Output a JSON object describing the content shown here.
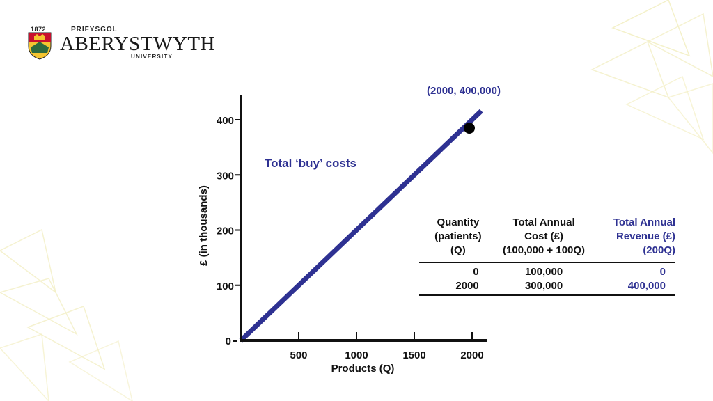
{
  "logo": {
    "year": "1872",
    "prifysgol": "PRIFYSGOL",
    "aberystwyth": "ABERYSTWYTH",
    "university": "UNIVERSITY"
  },
  "colors": {
    "series": "#2e3192",
    "axis": "#111111",
    "decoration": "#f3efc4"
  },
  "chart_data": {
    "type": "line",
    "xlabel": "Products (Q)",
    "ylabel": "£ (in thousands)",
    "xlim": [
      0,
      2000
    ],
    "ylim": [
      0,
      400
    ],
    "x_ticks": [
      500,
      1000,
      1500,
      2000
    ],
    "y_ticks": [
      0,
      100,
      200,
      300,
      400
    ],
    "series": [
      {
        "name": "Total ‘buy’ costs",
        "x": [
          0,
          2000
        ],
        "y": [
          0,
          400
        ]
      }
    ],
    "highlight_point": {
      "x": 2000,
      "y": 400,
      "label": "(2000, 400,000)"
    }
  },
  "table": {
    "headers": {
      "quantity": [
        "Quantity",
        "(patients)",
        "(Q)"
      ],
      "cost": [
        "Total Annual",
        "Cost (£)",
        "(100,000 + 100Q)"
      ],
      "revenue": [
        "Total Annual",
        "Revenue (£)",
        "(200Q)"
      ]
    },
    "rows": [
      {
        "quantity": "0",
        "cost": "100,000",
        "revenue": "0"
      },
      {
        "quantity": "2000",
        "cost": "300,000",
        "revenue": "400,000"
      }
    ]
  }
}
